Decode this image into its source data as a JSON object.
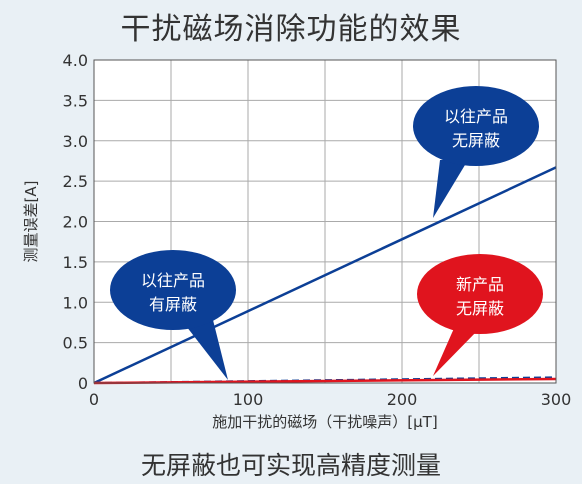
{
  "title": "干扰磁场消除功能的效果",
  "caption": "无屏蔽也可实现高精度测量",
  "colors": {
    "blue": "#0c3f96",
    "red": "#e0141e",
    "grid": "#aaaaaa",
    "plot_bg": "#ffffff"
  },
  "chart_data": {
    "type": "line",
    "xlabel": "施加干扰的磁场（干扰噪声）[μT]",
    "ylabel": "测量误差[A]",
    "xlim": [
      0,
      300
    ],
    "ylim": [
      0,
      4.0
    ],
    "x_ticks": [
      "0",
      "100",
      "200",
      "300"
    ],
    "y_ticks": [
      "0",
      "0.5",
      "1.0",
      "1.5",
      "2.0",
      "2.5",
      "3.0",
      "3.5",
      "4.0"
    ],
    "x_tick_values": [
      0,
      100,
      200,
      300
    ],
    "y_tick_values": [
      0,
      0.5,
      1.0,
      1.5,
      2.0,
      2.5,
      3.0,
      3.5,
      4.0
    ],
    "grid": true,
    "series": [
      {
        "key": "conventional_unshielded",
        "style": "solid",
        "color": "#0c3f96",
        "x": [
          0,
          300
        ],
        "y": [
          0,
          2.67
        ]
      },
      {
        "key": "conventional_shielded",
        "style": "dashed",
        "color": "#0c3f96",
        "x": [
          0,
          300
        ],
        "y": [
          0,
          0.07
        ]
      },
      {
        "key": "new_unshielded",
        "style": "solid",
        "color": "#e0141e",
        "x": [
          0,
          300
        ],
        "y": [
          0,
          0.05
        ]
      }
    ],
    "annotations": [
      {
        "key": "conventional_unshielded",
        "lines": [
          "以往产品",
          "无屏蔽"
        ],
        "color": "#0c3f96"
      },
      {
        "key": "conventional_shielded",
        "lines": [
          "以往产品",
          "有屏蔽"
        ],
        "color": "#0c3f96"
      },
      {
        "key": "new_unshielded",
        "lines": [
          "新产品",
          "无屏蔽"
        ],
        "color": "#e0141e"
      }
    ]
  }
}
